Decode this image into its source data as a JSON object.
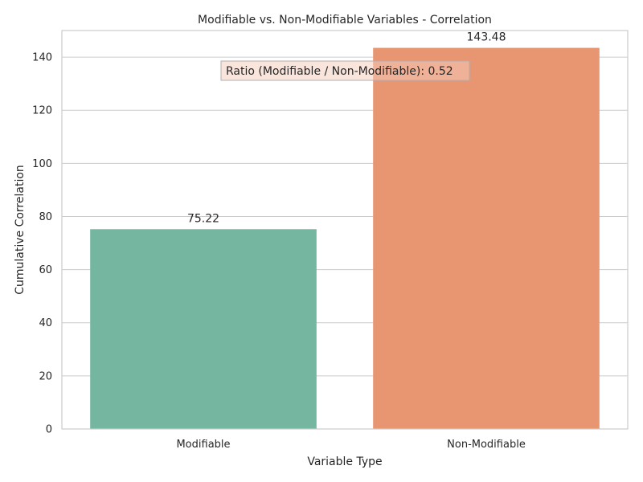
{
  "chart_data": {
    "type": "bar",
    "title": "Modifiable vs. Non-Modifiable Variables - Correlation",
    "xlabel": "Variable Type",
    "ylabel": "Cumulative Correlation",
    "categories": [
      "Modifiable",
      "Non-Modifiable"
    ],
    "values": [
      75.22,
      143.48
    ],
    "value_labels": [
      "75.22",
      "143.48"
    ],
    "colors": [
      "#75b6a0",
      "#e89672"
    ],
    "ylim": [
      0,
      150
    ],
    "yticks": [
      0,
      20,
      40,
      60,
      80,
      100,
      120,
      140
    ],
    "grid": true,
    "annotation": {
      "text": "Ratio (Modifiable / Non-Modifiable): 0.52",
      "box_color": "#f5cbbb",
      "border_color": "#b0b0b0"
    }
  }
}
